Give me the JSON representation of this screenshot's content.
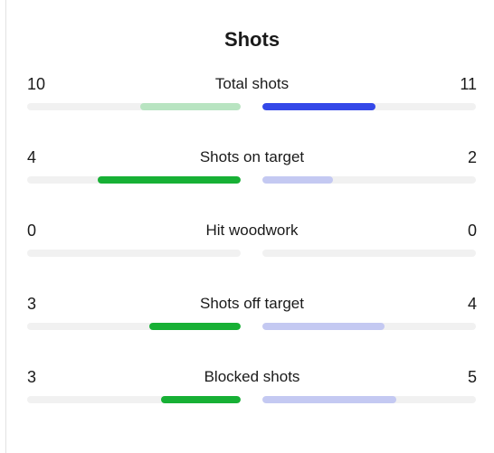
{
  "panel": {
    "title": "Shots"
  },
  "colors": {
    "track": "#f1f1f1",
    "home_strong": "#17b035",
    "home_light": "#b8e4c1",
    "away_strong": "#3448e8",
    "away_light": "#c4c9f2"
  },
  "stats": [
    {
      "label": "Total shots",
      "home": "10",
      "away": "11",
      "home_fraction": 0.47,
      "away_fraction": 0.53,
      "home_color": "#b8e4c1",
      "away_color": "#3448e8"
    },
    {
      "label": "Shots on target",
      "home": "4",
      "away": "2",
      "home_fraction": 0.67,
      "away_fraction": 0.33,
      "home_color": "#17b035",
      "away_color": "#c4c9f2"
    },
    {
      "label": "Hit woodwork",
      "home": "0",
      "away": "0",
      "home_fraction": 0,
      "away_fraction": 0,
      "home_color": "#17b035",
      "away_color": "#c4c9f2"
    },
    {
      "label": "Shots off target",
      "home": "3",
      "away": "4",
      "home_fraction": 0.43,
      "away_fraction": 0.57,
      "home_color": "#17b035",
      "away_color": "#c4c9f2"
    },
    {
      "label": "Blocked shots",
      "home": "3",
      "away": "5",
      "home_fraction": 0.375,
      "away_fraction": 0.625,
      "home_color": "#17b035",
      "away_color": "#c4c9f2"
    }
  ]
}
